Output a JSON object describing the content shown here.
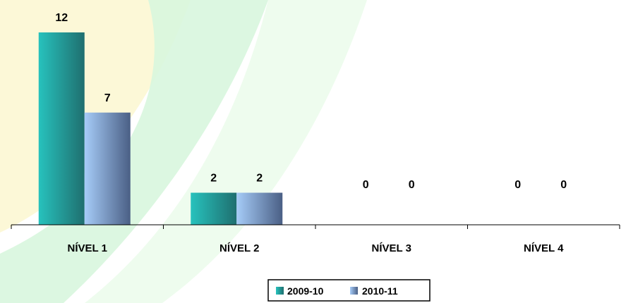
{
  "chart_data": {
    "type": "bar",
    "categories": [
      "NÍVEL 1",
      "NÍVEL 2",
      "NÍVEL 3",
      "NÍVEL 4"
    ],
    "series": [
      {
        "name": "2009-10",
        "values": [
          12,
          2,
          0,
          0
        ]
      },
      {
        "name": "2010-11",
        "values": [
          7,
          2,
          0,
          0
        ]
      }
    ],
    "ylim": [
      0,
      12
    ],
    "grid": false,
    "legend_position": "bottom",
    "data_labels": true
  },
  "colors": {
    "series_2009_10": [
      "#27c2bd",
      "#1f6f6f"
    ],
    "series_2010_11": [
      "#a6ccf8",
      "#4a5f85"
    ],
    "background_watermark": [
      "#fbf7d0",
      "#d5f6dc",
      "#e9fbe9"
    ]
  }
}
